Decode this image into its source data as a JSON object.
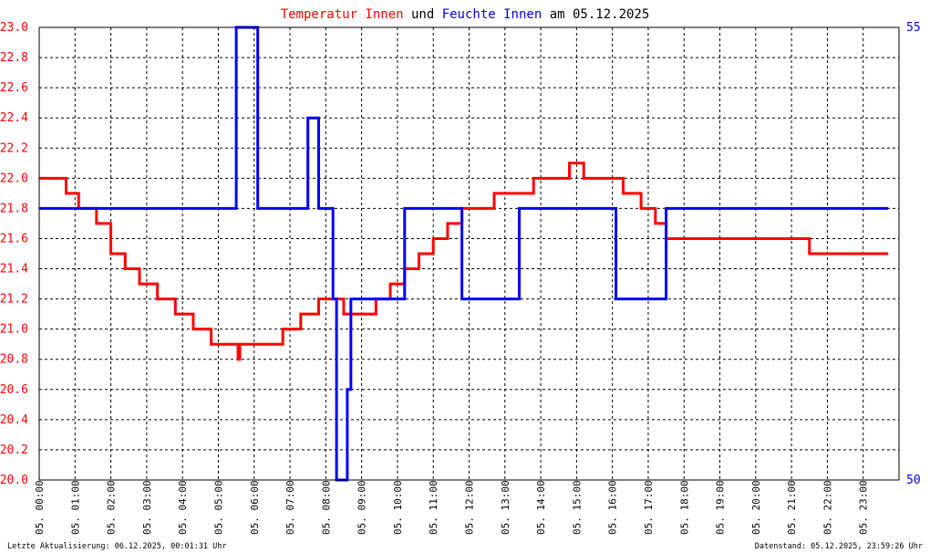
{
  "chart_data": {
    "type": "line",
    "title_parts": [
      {
        "text": "Temperatur Innen",
        "color": "#ff0000"
      },
      {
        "text": " und ",
        "color": "#000000"
      },
      {
        "text": "Feuchte Innen",
        "color": "#0000ff"
      },
      {
        "text": " am 05.12.2025",
        "color": "#000000"
      }
    ],
    "y_left": {
      "min": 20.0,
      "max": 23.0,
      "ticks": [
        "20.0",
        "20.2",
        "20.4",
        "20.6",
        "20.8",
        "21.0",
        "21.2",
        "21.4",
        "21.6",
        "21.8",
        "22.0",
        "22.2",
        "22.4",
        "22.6",
        "22.8",
        "23.0"
      ],
      "color": "#ff0000"
    },
    "y_right": {
      "min": 50,
      "max": 55,
      "ticks": [
        "50",
        "55"
      ],
      "color": "#0000ff"
    },
    "x_axis": {
      "min": 0,
      "max": 24,
      "tick_labels": [
        "05. 00:00",
        "05. 01:00",
        "05. 02:00",
        "05. 03:00",
        "05. 04:00",
        "05. 05:00",
        "05. 06:00",
        "05. 07:00",
        "05. 08:00",
        "05. 09:00",
        "05. 10:00",
        "05. 11:00",
        "05. 12:00",
        "05. 13:00",
        "05. 14:00",
        "05. 15:00",
        "05. 16:00",
        "05. 17:00",
        "05. 18:00",
        "05. 19:00",
        "05. 20:00",
        "05. 21:00",
        "05. 22:00",
        "05. 23:00"
      ]
    },
    "grid": true,
    "series": [
      {
        "axis": "left",
        "color": "#ff0000",
        "x": [
          0.0,
          0.7,
          0.75,
          1.1,
          1.6,
          2.0,
          2.4,
          2.8,
          3.3,
          3.8,
          4.3,
          4.8,
          5.5,
          5.55,
          5.6,
          6.3,
          6.8,
          7.3,
          7.8,
          8.0,
          8.5,
          9.0,
          9.4,
          9.8,
          10.2,
          10.6,
          11.0,
          11.4,
          11.8,
          12.1,
          12.3,
          12.7,
          13.4,
          13.8,
          14.3,
          14.8,
          15.2,
          15.6,
          16.3,
          16.8,
          17.2,
          17.3,
          17.5,
          19.0,
          19.5,
          20.0,
          20.5,
          21.0,
          21.5,
          22.0,
          22.6,
          23.0,
          23.7
        ],
        "y": [
          22.0,
          22.0,
          21.9,
          21.8,
          21.7,
          21.5,
          21.4,
          21.3,
          21.2,
          21.1,
          21.0,
          20.9,
          20.9,
          20.8,
          20.9,
          20.9,
          21.0,
          21.1,
          21.2,
          21.2,
          21.1,
          21.1,
          21.2,
          21.3,
          21.4,
          21.5,
          21.6,
          21.7,
          21.8,
          21.8,
          21.8,
          21.9,
          21.9,
          22.0,
          22.0,
          22.1,
          22.0,
          22.0,
          21.9,
          21.8,
          21.7,
          21.7,
          21.6,
          21.6,
          21.6,
          21.6,
          21.6,
          21.6,
          21.5,
          21.5,
          21.5,
          21.5,
          21.5
        ]
      },
      {
        "axis": "right",
        "color": "#0000ff",
        "x": [
          0.0,
          5.5,
          5.5,
          6.1,
          6.1,
          7.5,
          7.5,
          7.8,
          7.8,
          8.2,
          8.2,
          8.3,
          8.3,
          8.6,
          8.6,
          8.7,
          8.7,
          10.2,
          10.2,
          10.4,
          10.4,
          11.8,
          11.8,
          13.4,
          13.4,
          14.4,
          14.4,
          16.1,
          16.1,
          17.5,
          17.5,
          23.7
        ],
        "y": [
          53,
          53,
          55,
          55,
          53,
          53,
          54,
          54,
          53,
          53,
          52,
          52,
          50,
          50,
          51,
          51,
          52,
          52,
          53,
          53,
          53,
          53,
          52,
          52,
          53,
          53,
          53,
          53,
          52,
          52,
          53,
          53
        ]
      }
    ],
    "footer_left": "Letzte Aktualisierung: 06.12.2025, 00:01:31 Uhr",
    "footer_right": "Datenstand: 05.12.2025, 23:59:26 Uhr"
  }
}
